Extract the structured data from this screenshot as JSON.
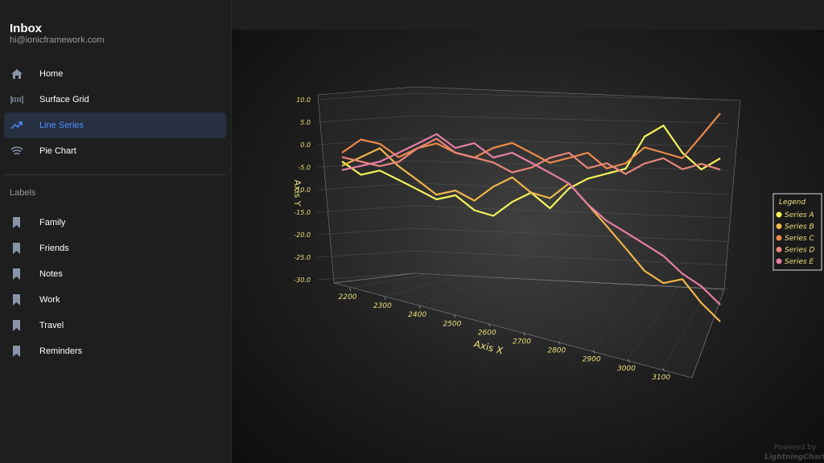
{
  "sidebar": {
    "title": "Inbox",
    "email": "hi@ionicframework.com",
    "nav": [
      {
        "label": "Home",
        "selected": false
      },
      {
        "label": "Surface Grid",
        "selected": false
      },
      {
        "label": "Line Series",
        "selected": true
      },
      {
        "label": "Pie Chart",
        "selected": false
      }
    ],
    "labels_heading": "Labels",
    "labels": [
      "Family",
      "Friends",
      "Notes",
      "Work",
      "Travel",
      "Reminders"
    ]
  },
  "chart_data": {
    "type": "line3d",
    "x_label": "Axis X",
    "y_label": "Axis Y",
    "x": [
      2150,
      2200,
      2250,
      2300,
      2350,
      2400,
      2450,
      2500,
      2550,
      2600,
      2650,
      2700,
      2750,
      2800,
      2850,
      2900,
      2950,
      3000,
      3050,
      3100,
      3150
    ],
    "xlim": [
      2150,
      3150
    ],
    "ylim": [
      -30,
      10
    ],
    "xticks": [
      2200,
      2300,
      2400,
      2500,
      2600,
      2700,
      2800,
      2900,
      3000,
      3100
    ],
    "yticks": [
      {
        "value": 10,
        "label": "10.0"
      },
      {
        "value": 5,
        "label": "5.0"
      },
      {
        "value": 0,
        "label": "0.0"
      },
      {
        "value": -5,
        "label": "-5.0"
      },
      {
        "value": -10,
        "label": "-10.0"
      },
      {
        "value": -15,
        "label": "-15.0"
      },
      {
        "value": -20,
        "label": "-20.0"
      },
      {
        "value": -25,
        "label": "-25.0"
      },
      {
        "value": -30,
        "label": "-30.0"
      }
    ],
    "grid": true,
    "legend_title": "Legend",
    "legend": "right",
    "series": [
      {
        "name": "Series A",
        "color": "#f5f35a",
        "values": [
          -2,
          -5,
          -4,
          -6,
          -8,
          -10,
          -9,
          -12,
          -13,
          -10,
          -8,
          -11,
          -7,
          -5,
          -4,
          -3,
          3,
          5,
          0,
          -3,
          -1
        ]
      },
      {
        "name": "Series B",
        "color": "#f0b64a",
        "values": [
          -3,
          -1,
          1,
          -3,
          -6,
          -9,
          -8,
          -10,
          -7,
          -5,
          -8,
          -9,
          -6,
          -10,
          -14,
          -18,
          -22,
          -24,
          -23,
          -27,
          -30
        ]
      },
      {
        "name": "Series C",
        "color": "#eb8a4a",
        "values": [
          0,
          3,
          2,
          -1,
          1,
          2,
          0,
          -1,
          1,
          2,
          0,
          -2,
          -1,
          0,
          -3,
          -2,
          1,
          0,
          -1,
          3,
          7
        ]
      },
      {
        "name": "Series D",
        "color": "#e8857a",
        "values": [
          -1,
          -2,
          -3,
          -2,
          1,
          3,
          0,
          -1,
          -2,
          -4,
          -3,
          -1,
          0,
          -3,
          -2,
          -4,
          -2,
          -1,
          -3,
          -2,
          -3
        ]
      },
      {
        "name": "Series E",
        "color": "#e57ea6",
        "values": [
          -4,
          -3,
          -2,
          0,
          2,
          4,
          1,
          2,
          -1,
          0,
          -2,
          -4,
          -6,
          -10,
          -13,
          -15,
          -17,
          -19,
          -22,
          -24,
          -27
        ]
      }
    ]
  },
  "footer": {
    "powered": "Powered by",
    "brand": "LightningChart®"
  }
}
